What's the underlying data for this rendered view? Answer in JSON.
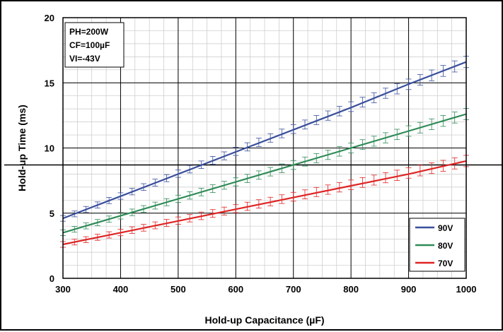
{
  "chart_data": {
    "type": "line",
    "xlabel": "Hold-up Capacitance (µF)",
    "ylabel": "Hold-up Time (ms)",
    "xlim": [
      300,
      1000
    ],
    "ylim": [
      0,
      20
    ],
    "x_ticks": [
      300,
      400,
      500,
      600,
      700,
      800,
      900,
      1000
    ],
    "y_ticks": [
      0,
      5,
      10,
      15,
      20
    ],
    "minor_grid": true,
    "grid": true,
    "reference_line_y": 8.7,
    "annotation": [
      "PH=200W",
      "CF=100µF",
      "VI=-43V"
    ],
    "legend_position": "bottom-right",
    "series": [
      {
        "name": "90V",
        "color": "#3a4f9c",
        "x": [
          300,
          400,
          500,
          600,
          700,
          800,
          900,
          1000
        ],
        "values": [
          4.6,
          6.3,
          8.0,
          9.7,
          11.4,
          13.1,
          14.9,
          16.6
        ]
      },
      {
        "name": "80V",
        "color": "#2e8b57",
        "x": [
          300,
          400,
          500,
          600,
          700,
          800,
          900,
          1000
        ],
        "values": [
          3.5,
          4.8,
          6.1,
          7.4,
          8.7,
          10.0,
          11.3,
          12.6
        ]
      },
      {
        "name": "70V",
        "color": "#e02424",
        "x": [
          300,
          400,
          500,
          600,
          700,
          800,
          900,
          1000
        ],
        "values": [
          2.6,
          3.5,
          4.4,
          5.3,
          6.2,
          7.1,
          8.0,
          9.0
        ]
      }
    ]
  }
}
